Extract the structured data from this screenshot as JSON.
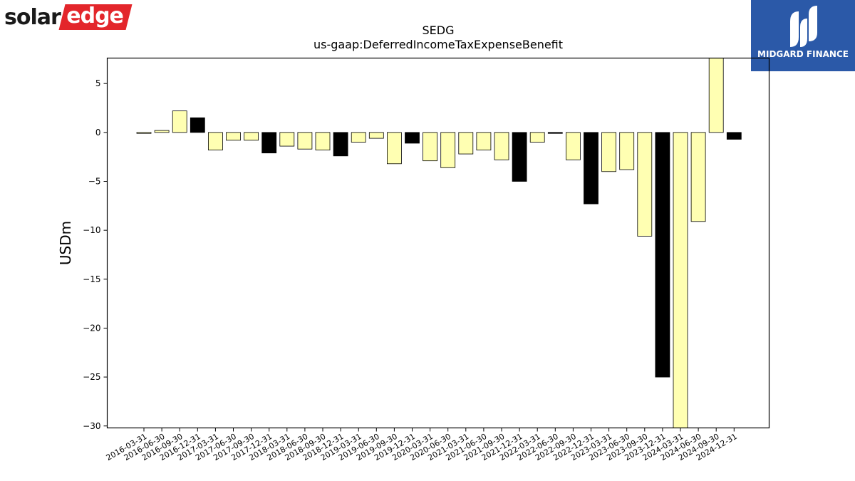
{
  "brand_left": {
    "part1": "solar",
    "part2": "edge"
  },
  "brand_right": {
    "text": "MIDGARD FINANCE"
  },
  "chart_data": {
    "type": "bar",
    "title": "SEDG",
    "subtitle": "us-gaap:DeferredIncomeTaxExpenseBenefit",
    "xlabel": "",
    "ylabel": "USDm",
    "ylim": [
      -30.2,
      7.6
    ],
    "yticks": [
      5,
      0,
      -5,
      -10,
      -15,
      -20,
      -25,
      -30
    ],
    "grid": false,
    "colors": {
      "light": "#ffffb2",
      "dark": "#000000",
      "edge": "#000000"
    },
    "categories": [
      "2016-03-31",
      "2016-06-30",
      "2016-09-30",
      "2016-12-31",
      "2017-03-31",
      "2017-06-30",
      "2017-09-30",
      "2017-12-31",
      "2018-03-31",
      "2018-06-30",
      "2018-09-30",
      "2018-12-31",
      "2019-03-31",
      "2019-06-30",
      "2019-09-30",
      "2019-12-31",
      "2020-03-31",
      "2020-06-30",
      "2021-03-31",
      "2021-06-30",
      "2021-09-30",
      "2021-12-31",
      "2022-03-31",
      "2022-06-30",
      "2022-09-30",
      "2022-12-31",
      "2023-03-31",
      "2023-06-30",
      "2023-09-30",
      "2023-12-31",
      "2024-03-31",
      "2024-06-30",
      "2024-09-30",
      "2024-12-31"
    ],
    "values": [
      -0.1,
      0.2,
      2.2,
      1.5,
      -1.8,
      -0.8,
      -0.8,
      -2.1,
      -1.4,
      -1.7,
      -1.8,
      -2.4,
      -1.0,
      -0.6,
      -3.2,
      -1.1,
      -2.9,
      -3.6,
      -2.2,
      -1.8,
      -2.8,
      -5.0,
      -1.0,
      -0.1,
      -2.8,
      -7.3,
      -4.0,
      -3.8,
      -10.6,
      -25.0,
      -30.5,
      -9.1,
      8.0,
      -0.7
    ],
    "dark": [
      false,
      false,
      false,
      true,
      false,
      false,
      false,
      true,
      false,
      false,
      false,
      true,
      false,
      false,
      false,
      true,
      false,
      false,
      false,
      false,
      false,
      true,
      false,
      true,
      false,
      true,
      false,
      false,
      false,
      true,
      false,
      false,
      false,
      true
    ]
  }
}
